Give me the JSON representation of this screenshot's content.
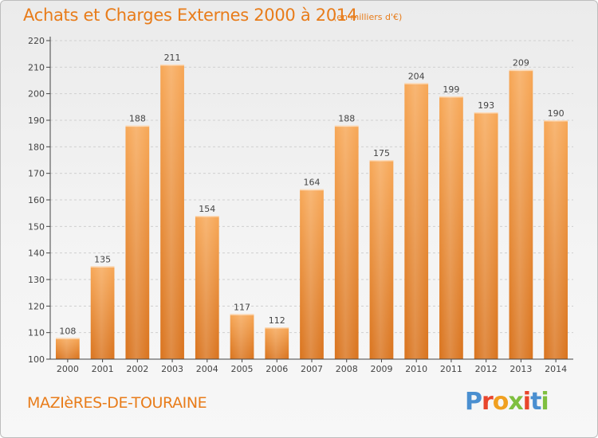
{
  "header": {
    "title": "Achats et Charges Externes 2000 à 2014",
    "subtitle": "(en milliers d'€)"
  },
  "footer": {
    "commune": "MAZIèRES-DE-TOURAINE",
    "logo": "Proxiti",
    "logo_colors": [
      "#4a8fd0",
      "#e8452c",
      "#f0a020",
      "#7fbf3f",
      "#e8452c",
      "#4a8fd0",
      "#7fbf3f"
    ]
  },
  "chart_data": {
    "type": "bar",
    "title": "Achats et Charges Externes 2000 à 2014",
    "subtitle": "(en milliers d'€)",
    "categories": [
      "2000",
      "2001",
      "2002",
      "2003",
      "2004",
      "2005",
      "2006",
      "2007",
      "2008",
      "2009",
      "2010",
      "2011",
      "2012",
      "2013",
      "2014"
    ],
    "values": [
      108,
      135,
      188,
      211,
      154,
      117,
      112,
      164,
      188,
      175,
      204,
      199,
      193,
      209,
      190
    ],
    "value_labels": [
      "108",
      "135",
      "188",
      "211",
      "154",
      "117",
      "112",
      "164",
      "188",
      "175",
      "204",
      "199",
      "193",
      "209",
      "190"
    ],
    "ylim": [
      100,
      220
    ],
    "yticks": [
      100,
      110,
      120,
      130,
      140,
      150,
      160,
      170,
      180,
      190,
      200,
      210,
      220
    ],
    "ytick_labels": [
      "100",
      "110",
      "120",
      "130",
      "140",
      "150",
      "160",
      "170",
      "180",
      "190",
      "200",
      "210",
      "220"
    ],
    "grid": true,
    "bar_color_top": "#f7a756",
    "bar_color_bottom": "#d9731d",
    "axis_color": "#444444"
  }
}
